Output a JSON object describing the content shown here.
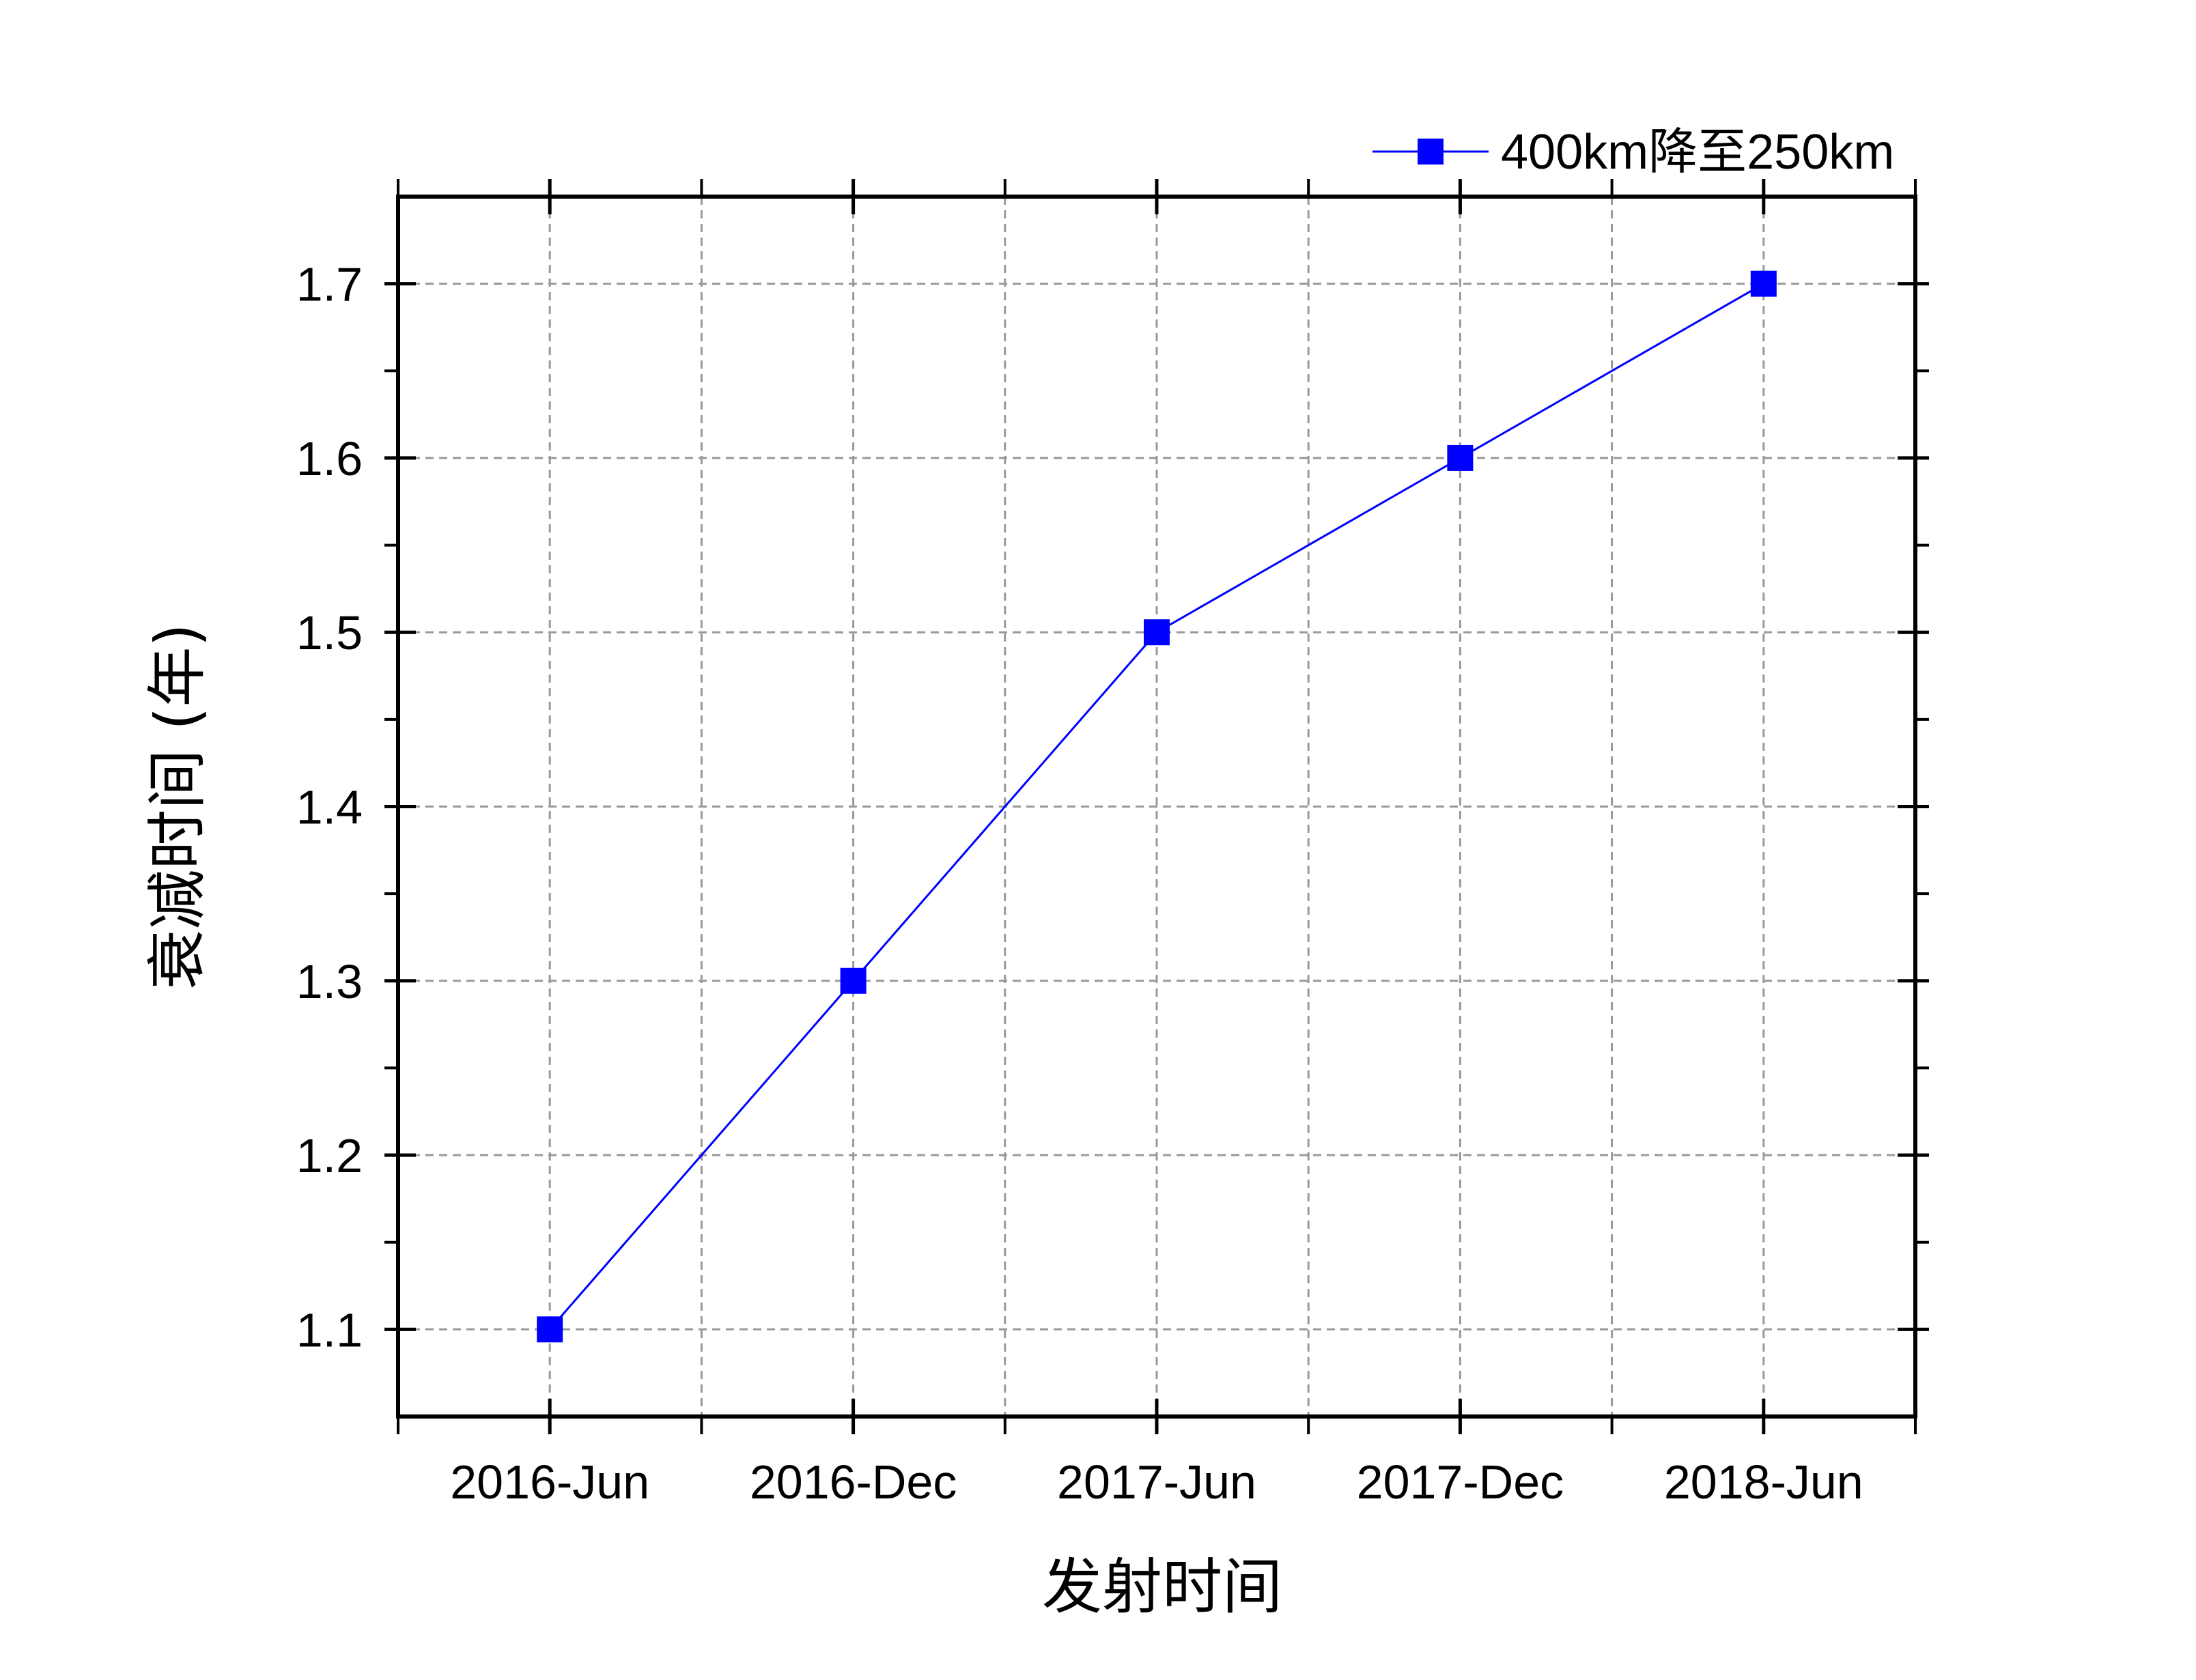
{
  "chart_data": {
    "type": "line",
    "categories": [
      "2016-Jun",
      "2016-Dec",
      "2017-Jun",
      "2017-Dec",
      "2018-Jun"
    ],
    "series": [
      {
        "name": "400km降至250km",
        "values": [
          1.1,
          1.3,
          1.5,
          1.6,
          1.7
        ],
        "color": "#0000ff",
        "marker": "square"
      }
    ],
    "xlabel": "发射时间",
    "ylabel": "衰减时间 (年)",
    "ylim": [
      1.05,
      1.75
    ],
    "yticks": [
      1.1,
      1.2,
      1.3,
      1.4,
      1.5,
      1.6,
      1.7
    ],
    "ytick_labels": [
      "1.1",
      "1.2",
      "1.3",
      "1.4",
      "1.5",
      "1.6",
      "1.7"
    ],
    "grid": true,
    "legend_position": "top-right"
  }
}
